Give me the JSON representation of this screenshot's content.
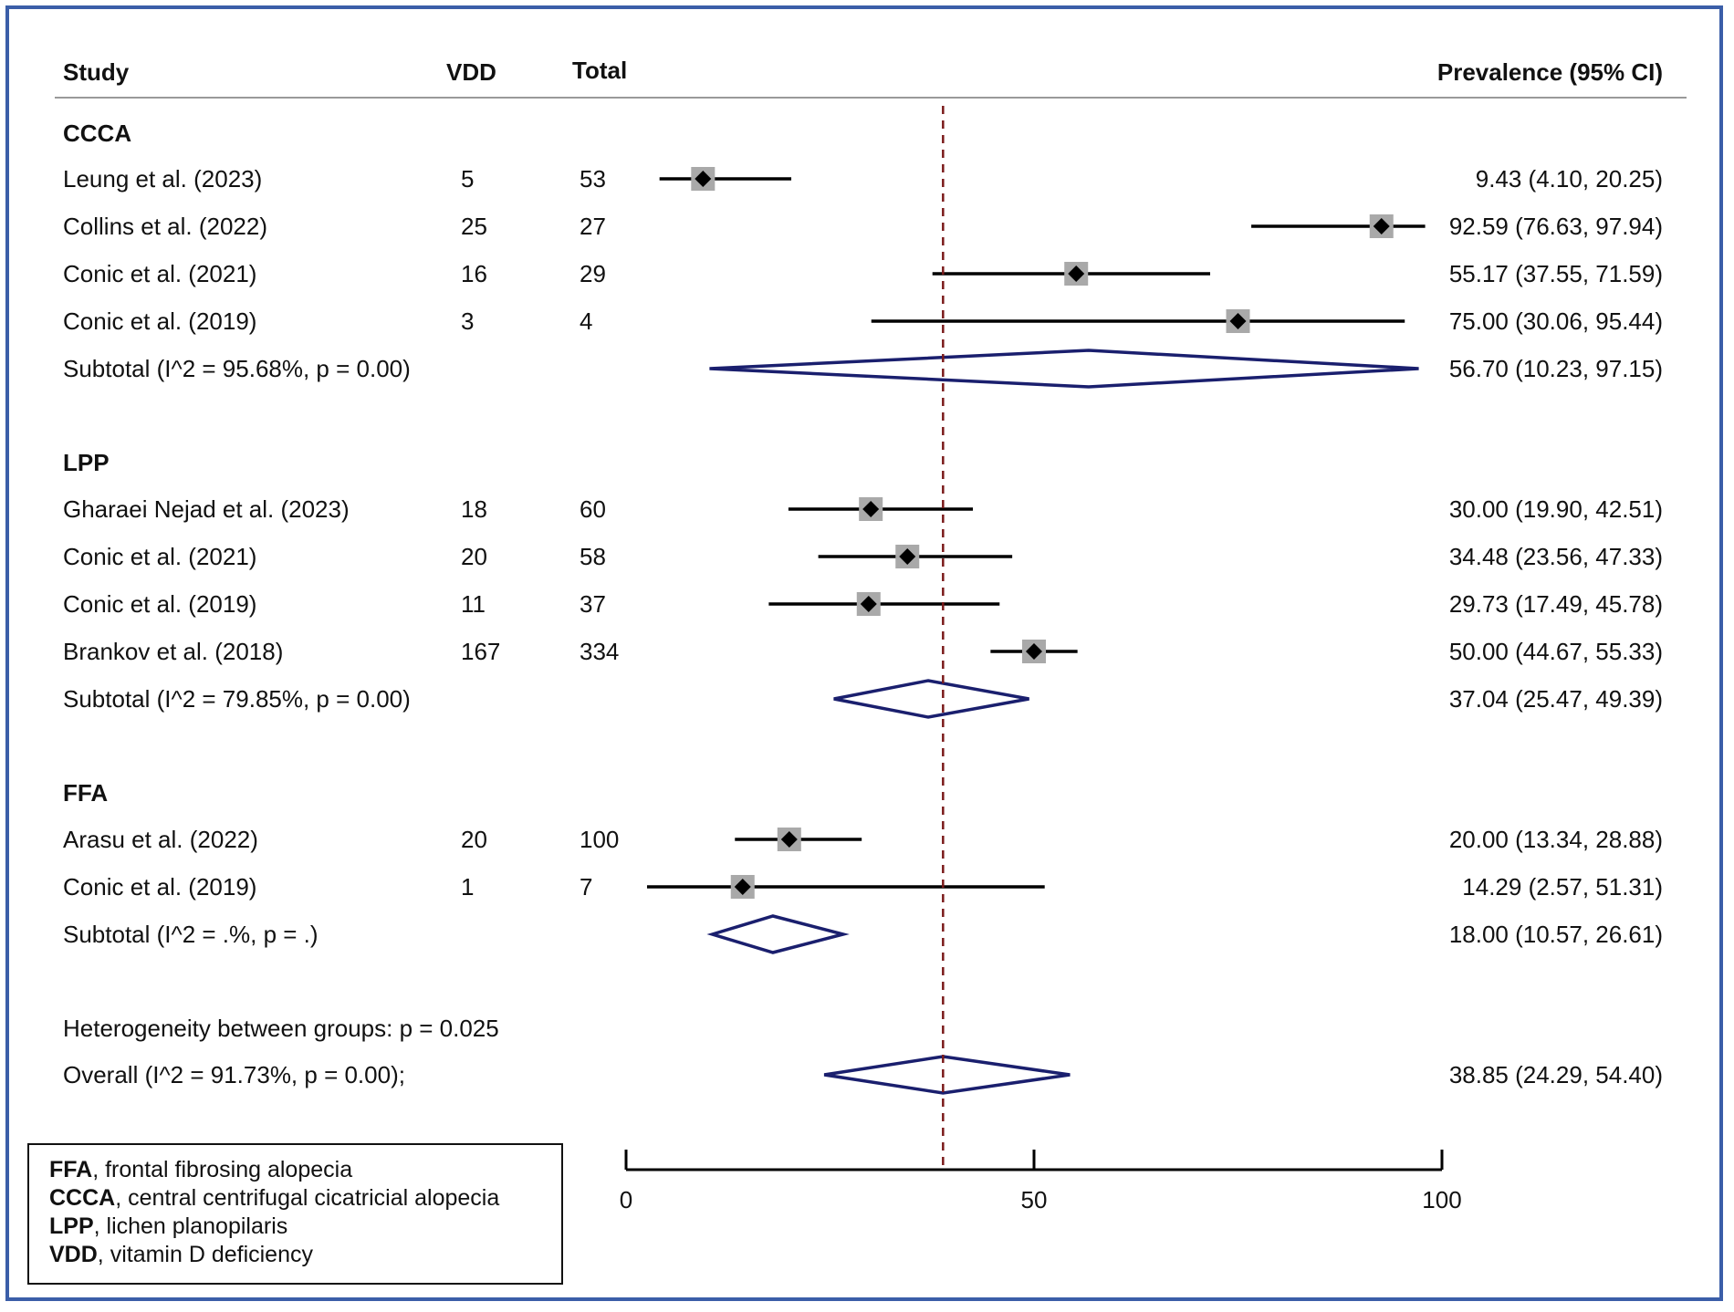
{
  "header": {
    "study": "Study",
    "vdd": "VDD",
    "total": "Total",
    "prevalence": "Prevalence (95% CI)"
  },
  "chart_data": {
    "type": "forest",
    "xlim": [
      0,
      100
    ],
    "xticks": [
      "0",
      "50",
      "100"
    ],
    "overall_ref_line": 38.85,
    "groups": [
      {
        "name": "CCCA",
        "studies": [
          {
            "label": "Leung et al. (2023)",
            "vdd": "5",
            "total": "53",
            "est": 9.43,
            "lo": 4.1,
            "hi": 20.25,
            "ci_text": "9.43 (4.10, 20.25)"
          },
          {
            "label": "Collins et al. (2022)",
            "vdd": "25",
            "total": "27",
            "est": 92.59,
            "lo": 76.63,
            "hi": 97.94,
            "ci_text": "92.59 (76.63, 97.94)"
          },
          {
            "label": "Conic et al. (2021)",
            "vdd": "16",
            "total": "29",
            "est": 55.17,
            "lo": 37.55,
            "hi": 71.59,
            "ci_text": "55.17 (37.55, 71.59)"
          },
          {
            "label": "Conic et al. (2019)",
            "vdd": "3",
            "total": "4",
            "est": 75.0,
            "lo": 30.06,
            "hi": 95.44,
            "ci_text": "75.00 (30.06, 95.44)"
          }
        ],
        "subtotal": {
          "label": "Subtotal  (I^2 = 95.68%, p = 0.00)",
          "est": 56.7,
          "lo": 10.23,
          "hi": 97.15,
          "ci_text": "56.70 (10.23, 97.15)"
        }
      },
      {
        "name": "LPP",
        "studies": [
          {
            "label": "Gharaei Nejad et al. (2023)",
            "vdd": "18",
            "total": "60",
            "est": 30.0,
            "lo": 19.9,
            "hi": 42.51,
            "ci_text": "30.00 (19.90, 42.51)"
          },
          {
            "label": "Conic et al. (2021)",
            "vdd": "20",
            "total": "58",
            "est": 34.48,
            "lo": 23.56,
            "hi": 47.33,
            "ci_text": "34.48 (23.56, 47.33)"
          },
          {
            "label": "Conic et al. (2019)",
            "vdd": "11",
            "total": "37",
            "est": 29.73,
            "lo": 17.49,
            "hi": 45.78,
            "ci_text": "29.73 (17.49, 45.78)"
          },
          {
            "label": "Brankov et al. (2018)",
            "vdd": "167",
            "total": "334",
            "est": 50.0,
            "lo": 44.67,
            "hi": 55.33,
            "ci_text": "50.00 (44.67, 55.33)"
          }
        ],
        "subtotal": {
          "label": "Subtotal  (I^2 = 79.85%, p = 0.00)",
          "est": 37.04,
          "lo": 25.47,
          "hi": 49.39,
          "ci_text": "37.04 (25.47, 49.39)"
        }
      },
      {
        "name": "FFA",
        "studies": [
          {
            "label": "Arasu et al. (2022)",
            "vdd": "20",
            "total": "100",
            "est": 20.0,
            "lo": 13.34,
            "hi": 28.88,
            "ci_text": "20.00 (13.34, 28.88)"
          },
          {
            "label": "Conic et al. (2019)",
            "vdd": "1",
            "total": "7",
            "est": 14.29,
            "lo": 2.57,
            "hi": 51.31,
            "ci_text": "14.29 (2.57, 51.31)"
          }
        ],
        "subtotal": {
          "label": "Subtotal  (I^2 = .%, p = .)",
          "est": 18.0,
          "lo": 10.57,
          "hi": 26.61,
          "ci_text": "18.00 (10.57, 26.61)"
        }
      }
    ],
    "heterogeneity": "Heterogeneity between groups: p = 0.025",
    "overall": {
      "label": "Overall  (I^2 = 91.73%, p = 0.00);",
      "est": 38.85,
      "lo": 24.29,
      "hi": 54.4,
      "ci_text": "38.85 (24.29, 54.40)"
    }
  },
  "legend": [
    {
      "abbr": "FFA",
      "text": ", frontal fibrosing alopecia"
    },
    {
      "abbr": "CCCA",
      "text": ", central centrifugal cicatricial alopecia"
    },
    {
      "abbr": "LPP",
      "text": ", lichen planopilaris"
    },
    {
      "abbr": "VDD",
      "text": ", vitamin D deficiency"
    }
  ],
  "colors": {
    "frame": "#3b5ea8",
    "diamond": "#1a1f6e",
    "ref_line": "#7a1a1a",
    "box": "#a9a9a9"
  }
}
